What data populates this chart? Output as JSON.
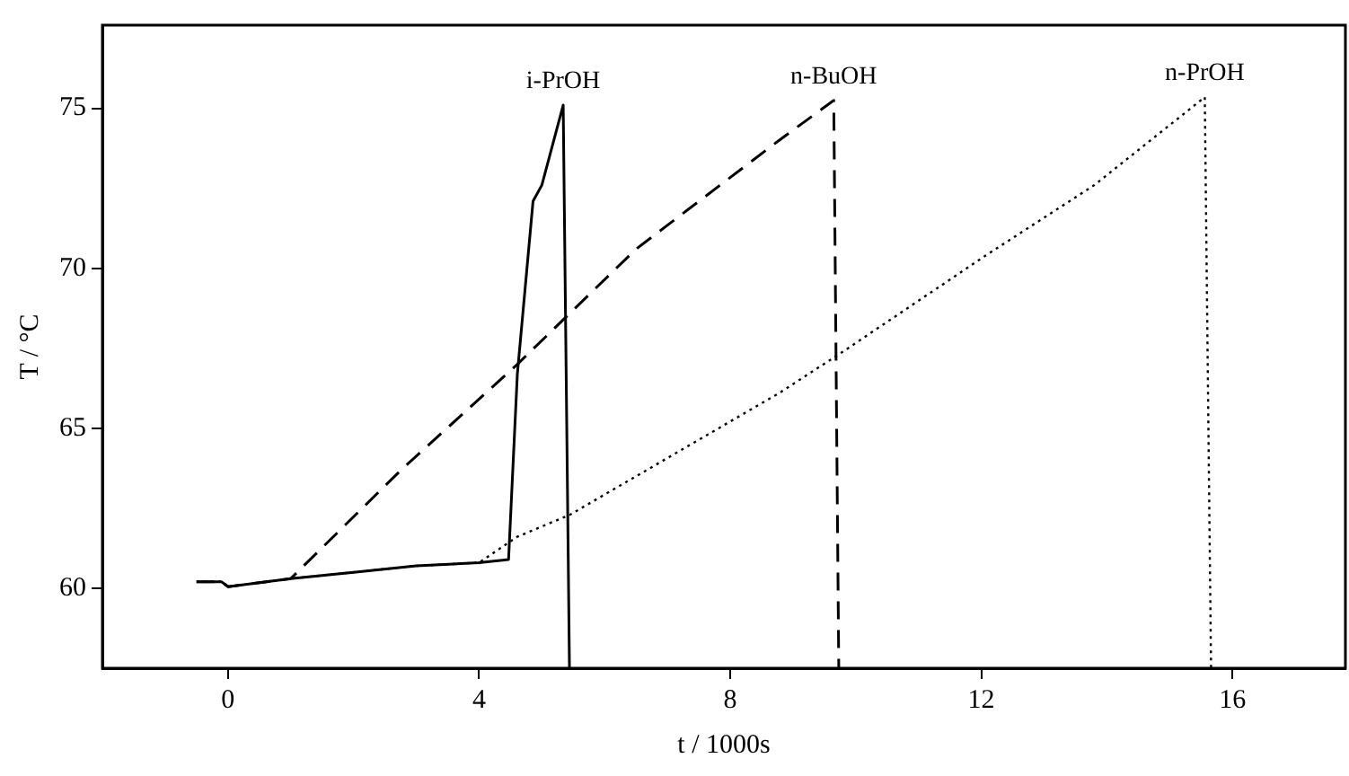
{
  "chart_data": {
    "type": "line",
    "xlabel": "t / 1000s",
    "ylabel": "T / °C",
    "xlim": [
      -2,
      17.8
    ],
    "ylim": [
      57.5,
      77.6
    ],
    "xticks": [
      0,
      4,
      8,
      12,
      16
    ],
    "yticks": [
      60,
      65,
      70,
      75
    ],
    "grid": false,
    "legend": false,
    "marker": "none",
    "series": [
      {
        "color": "#000000",
        "line_style": "solid",
        "x": [
          -0.5,
          -0.1,
          0,
          1,
          2,
          3,
          4,
          4.47,
          4.61,
          4.86,
          5,
          5.34,
          5.44
        ],
        "values": [
          60.2,
          60.2,
          60.05,
          60.3,
          60.5,
          60.7,
          60.8,
          60.9,
          66.7,
          72.1,
          72.6,
          75.1,
          57.5
        ]
      },
      {
        "color": "#000000",
        "line_style": "dashed",
        "x": [
          -0.5,
          -0.1,
          0,
          1,
          2.76,
          4.61,
          6.5,
          8.78,
          9.65,
          9.73
        ],
        "values": [
          60.2,
          60.2,
          60.05,
          60.3,
          63.7,
          67,
          70.6,
          74,
          75.25,
          57.5
        ]
      },
      {
        "color": "#000000",
        "line_style": "dotted",
        "x": [
          -0.5,
          -0.1,
          0,
          1,
          2,
          3,
          4,
          4.6,
          5.45,
          8.78,
          9.8,
          12.07,
          13.8,
          15.56,
          15.66
        ],
        "values": [
          60.2,
          60.2,
          60.05,
          60.3,
          60.5,
          60.7,
          60.8,
          61.6,
          62.3,
          66.1,
          67.4,
          70.4,
          72.6,
          75.35,
          57.5
        ]
      }
    ],
    "annotations": [
      {
        "text": "i-PrOH",
        "x": 5.34,
        "y": 75.1
      },
      {
        "text": "n-BuOH",
        "x": 9.65,
        "y": 75.25
      },
      {
        "text": "n-PrOH",
        "x": 15.56,
        "y": 75.35
      }
    ]
  }
}
